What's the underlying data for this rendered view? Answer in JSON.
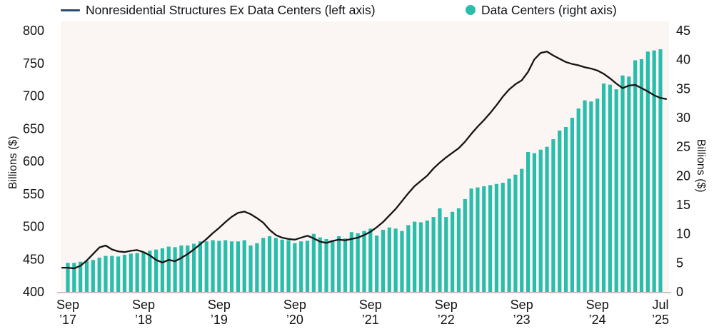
{
  "legend": {
    "line": {
      "label": "Nonresidential Structures Ex Data Centers (left axis)",
      "swatch_color": "#2e4b6e"
    },
    "bar": {
      "label": "Data Centers (right axis)",
      "swatch_color": "#29bdac"
    }
  },
  "chart_data": {
    "type": "combo-line-bar",
    "frequency": "monthly",
    "x_start": "Sep 2017",
    "x_end": "Jul 2025",
    "x_tick_labels": [
      [
        "Sep",
        "’17"
      ],
      [
        "Sep",
        "’18"
      ],
      [
        "Sep",
        "’19"
      ],
      [
        "Sep",
        "’20"
      ],
      [
        "Sep",
        "’21"
      ],
      [
        "Sep",
        "’22"
      ],
      [
        "Sep",
        "’23"
      ],
      [
        "Sep",
        "’24"
      ],
      [
        "Jul",
        "’25"
      ]
    ],
    "x_tick_month_index": [
      0,
      12,
      24,
      36,
      48,
      60,
      72,
      84,
      94
    ],
    "left_axis": {
      "title": "Billions ($)",
      "min": 400,
      "max": 800,
      "ticks": [
        400,
        450,
        500,
        550,
        600,
        650,
        700,
        750,
        800
      ]
    },
    "right_axis": {
      "title": "Billions ($)",
      "min": 0,
      "max": 45,
      "ticks": [
        0,
        5,
        10,
        15,
        20,
        25,
        30,
        35,
        40,
        45
      ]
    },
    "plot_bg": "#fbf6f4",
    "baseline_color": "#c9c4c1",
    "series": [
      {
        "name": "Nonresidential Structures Ex Data Centers",
        "type": "line",
        "axis": "left",
        "color": "#141414",
        "values": [
          437,
          436,
          440,
          448,
          458,
          468,
          471,
          465,
          462,
          461,
          463,
          464,
          461,
          456,
          449,
          445,
          449,
          447,
          452,
          458,
          465,
          473,
          481,
          490,
          498,
          507,
          515,
          521,
          523,
          519,
          513,
          506,
          495,
          487,
          483,
          481,
          480,
          483,
          486,
          482,
          477,
          475,
          478,
          480,
          479,
          481,
          483,
          487,
          492,
          499,
          507,
          517,
          527,
          539,
          551,
          562,
          570,
          578,
          589,
          598,
          606,
          613,
          620,
          630,
          642,
          653,
          663,
          674,
          686,
          699,
          710,
          718,
          724,
          737,
          756,
          766,
          768,
          762,
          757,
          752,
          749,
          747,
          744,
          742,
          739,
          734,
          727,
          719,
          712,
          716,
          717,
          712,
          707,
          701,
          697
        ]
      },
      {
        "name": "Data Centers",
        "type": "bar",
        "axis": "right",
        "color": "#29bdac",
        "values": [
          5.0,
          5.0,
          5.2,
          5.3,
          5.5,
          5.9,
          6.2,
          6.2,
          6.1,
          6.4,
          6.6,
          6.7,
          6.9,
          7.1,
          7.3,
          7.5,
          7.8,
          7.7,
          8.0,
          8.0,
          8.3,
          8.7,
          8.7,
          8.9,
          8.8,
          8.9,
          8.7,
          8.7,
          8.9,
          8.0,
          8.4,
          9.3,
          9.6,
          9.3,
          9.0,
          8.9,
          8.4,
          8.7,
          8.8,
          10.0,
          9.4,
          9.1,
          8.9,
          9.6,
          9.2,
          10.3,
          10.1,
          10.5,
          10.9,
          9.7,
          10.7,
          11.1,
          10.9,
          10.5,
          11.5,
          12.1,
          12.0,
          12.3,
          12.9,
          14.4,
          12.9,
          13.8,
          14.4,
          16.0,
          17.8,
          18.0,
          18.2,
          18.4,
          18.6,
          18.8,
          19.5,
          20.2,
          21.2,
          24.1,
          23.9,
          24.5,
          25.0,
          26.3,
          27.8,
          28.4,
          30.0,
          31.6,
          33.0,
          32.8,
          33.3,
          35.9,
          35.7,
          34.9,
          37.3,
          37.1,
          39.9,
          40.1,
          41.4,
          41.6,
          41.8
        ]
      }
    ]
  }
}
